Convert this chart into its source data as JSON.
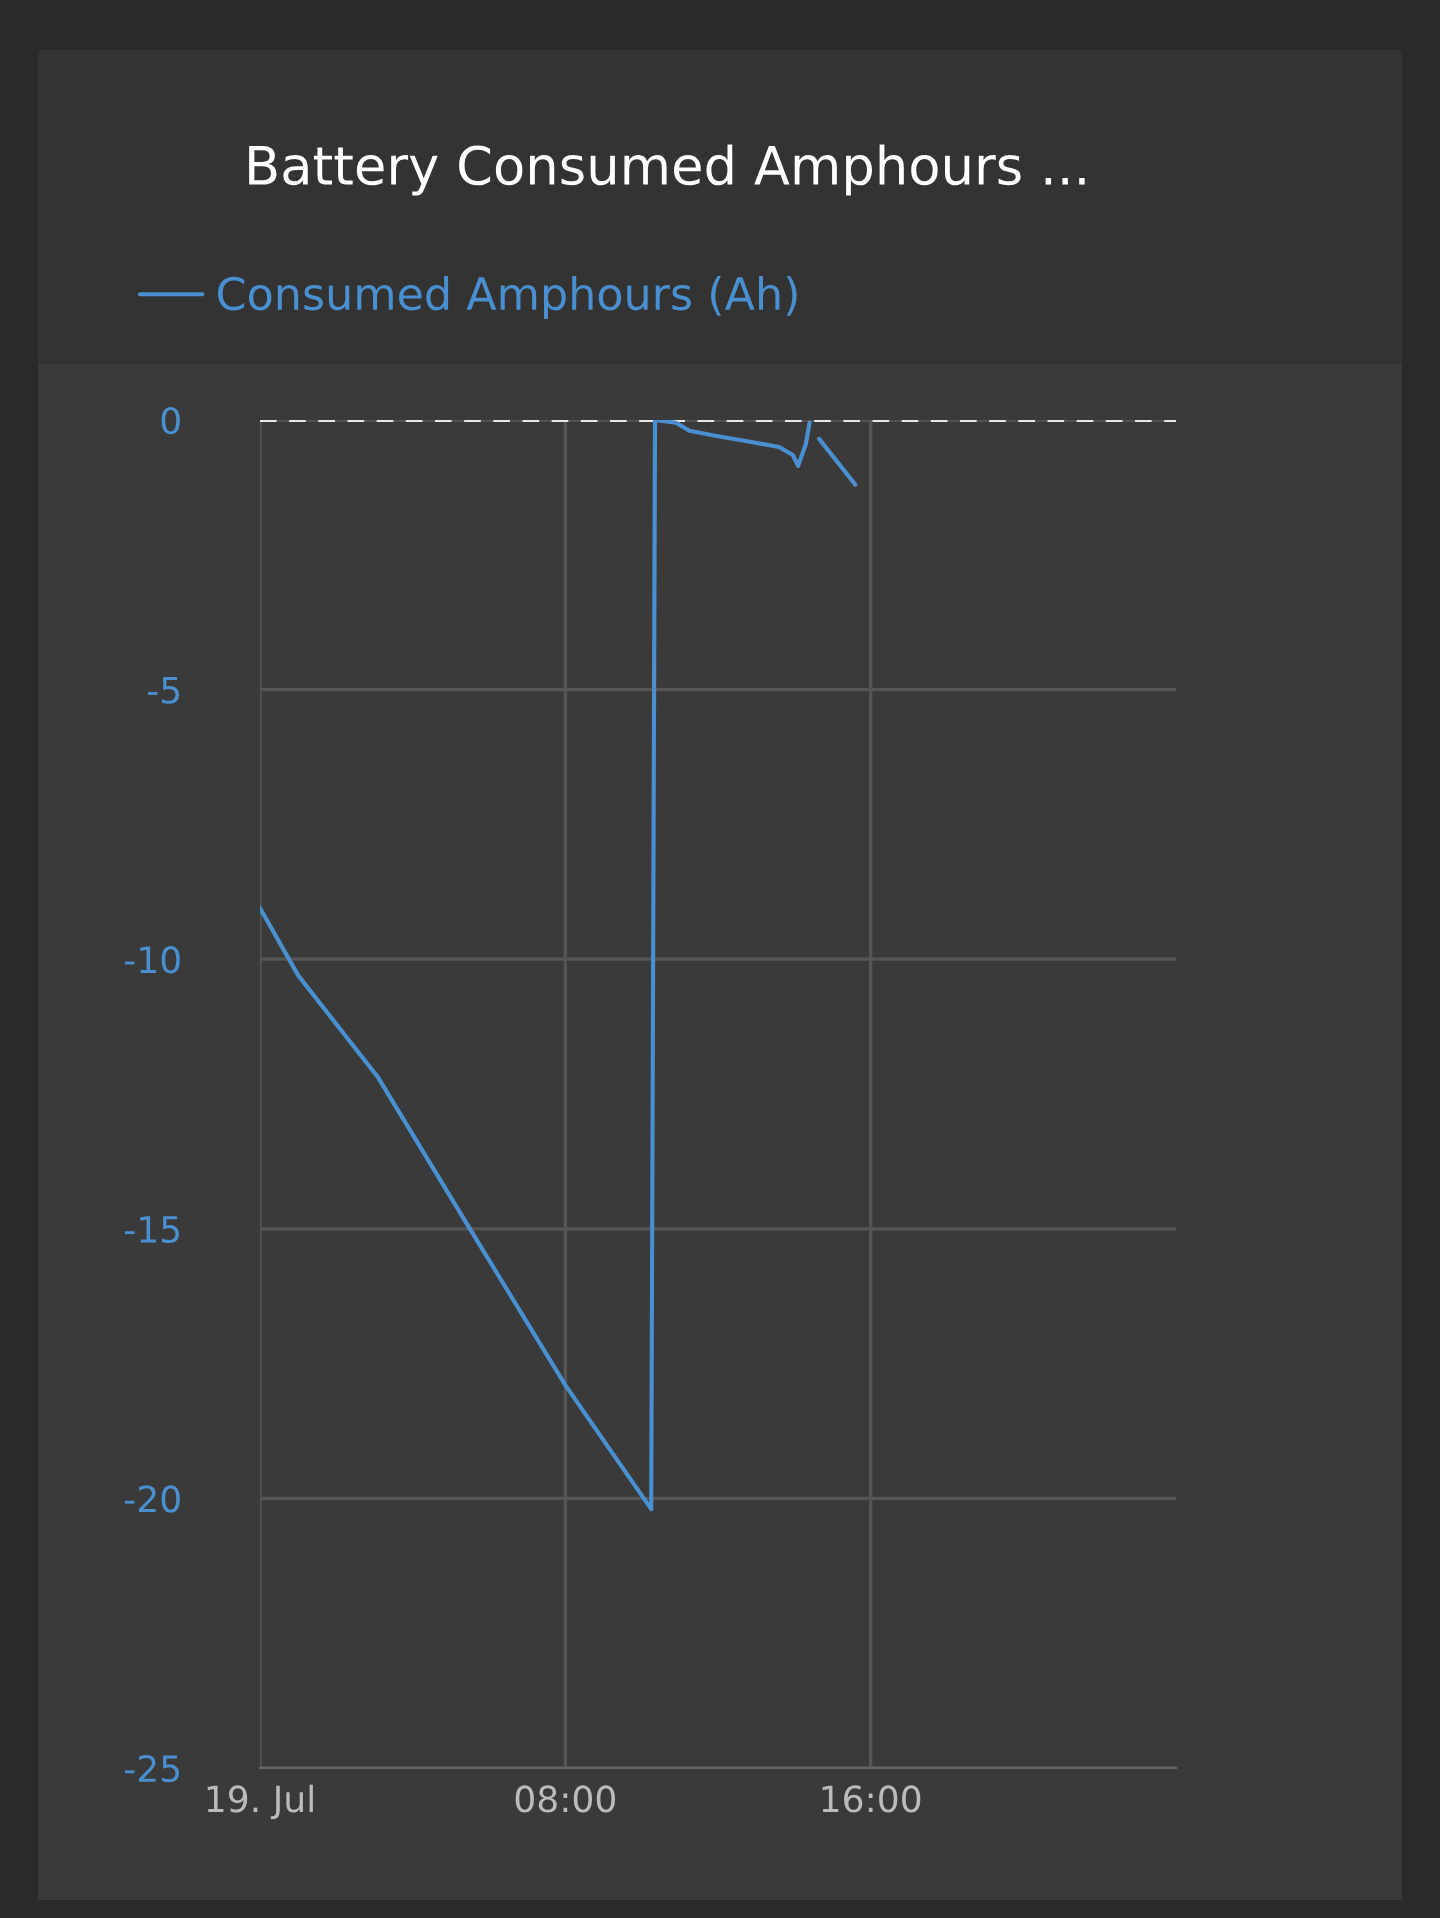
{
  "chart_data": {
    "type": "line",
    "title": "Battery Consumed Amphours ...",
    "legend": "top left",
    "grid": true,
    "x": [
      0,
      1.0,
      3.1,
      5.5,
      8.0,
      10.25,
      10.35,
      10.9,
      11.25,
      12.0,
      12.8,
      13.6,
      13.96,
      14.1,
      14.3,
      14.4,
      14.5,
      14.65,
      15.6
    ],
    "series": [
      {
        "name": "Consumed Amphours (Ah)",
        "color": "#4a8fd0",
        "values": [
          -9.05,
          -10.3,
          -12.2,
          -15.0,
          -17.9,
          -20.2,
          0,
          -0.05,
          -0.2,
          -0.3,
          -0.4,
          -0.5,
          -0.65,
          -0.85,
          -0.45,
          -0.05,
          null,
          -0.35,
          -1.2
        ]
      }
    ],
    "xlim": [
      0,
      24
    ],
    "xticks": [
      {
        "value": 0,
        "label": "19. Jul"
      },
      {
        "value": 8,
        "label": "08:00"
      },
      {
        "value": 16,
        "label": "16:00"
      }
    ],
    "ylim": [
      -25,
      0
    ],
    "yticks": [
      {
        "value": 0,
        "label": "0"
      },
      {
        "value": -5,
        "label": "-5"
      },
      {
        "value": -10,
        "label": "-10"
      },
      {
        "value": -15,
        "label": "-15"
      },
      {
        "value": -20,
        "label": "-20"
      },
      {
        "value": -25,
        "label": "-25"
      }
    ],
    "ref_lines": [
      {
        "axis": "y",
        "value": 0,
        "label": null,
        "color": "#e8e8e8",
        "line_style": "dashed"
      }
    ]
  }
}
